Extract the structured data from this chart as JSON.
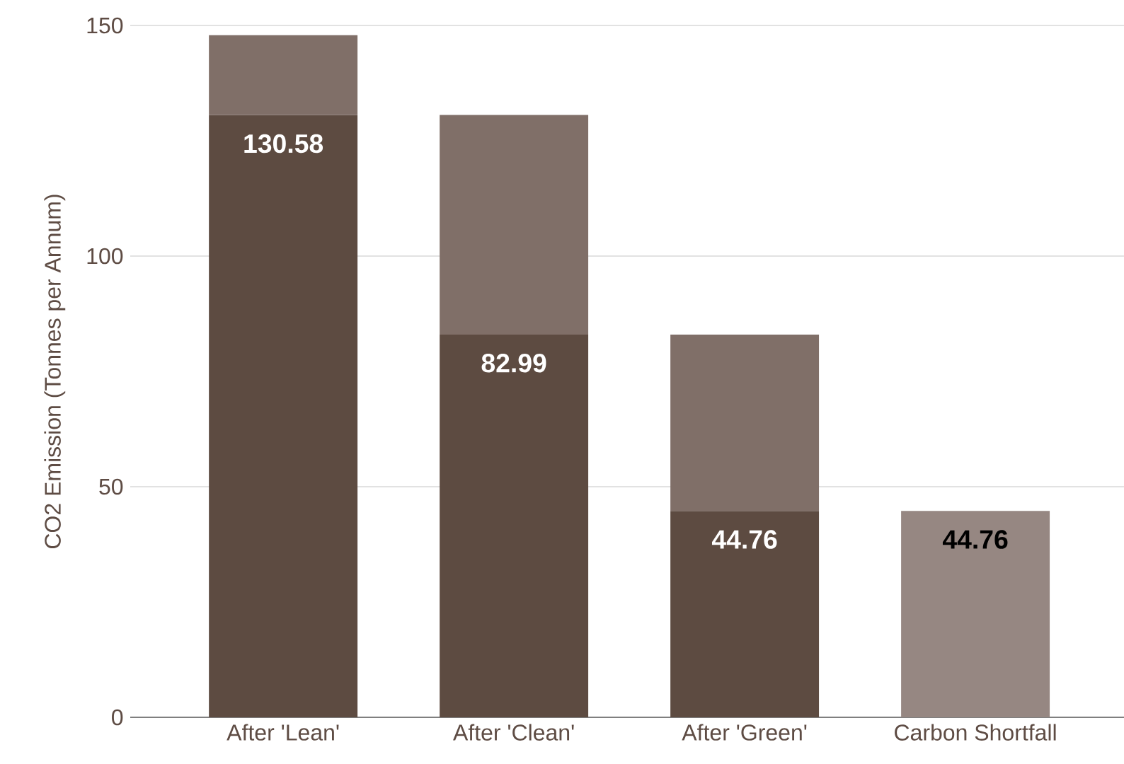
{
  "chart_data": {
    "type": "bar",
    "stacked": true,
    "ylabel": "CO2 Emission (Tonnes per Annum)",
    "categories": [
      "After 'Lean'",
      "After 'Clean'",
      "After 'Green'",
      "Carbon Shortfall"
    ],
    "series": [
      {
        "colors": [
          "#5d4b41",
          "#5d4b41",
          "#5d4b41",
          "#968782"
        ],
        "values": [
          130.58,
          82.99,
          44.76,
          44.76
        ],
        "value_labels": [
          "130.58",
          "82.99",
          "44.76",
          "44.76"
        ]
      },
      {
        "color": "#806f68",
        "values": [
          17.3,
          47.59,
          38.23,
          null
        ]
      }
    ],
    "ylim": [
      0,
      150
    ],
    "yticks": [
      0,
      50,
      100,
      150
    ],
    "grid": "y"
  }
}
